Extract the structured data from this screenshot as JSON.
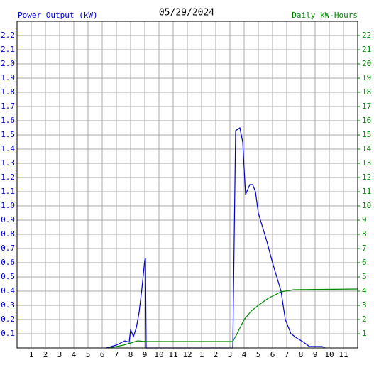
{
  "chart_data": {
    "type": "line",
    "title": "05/29/2024",
    "xlim": [
      0,
      24
    ],
    "ylim": [
      0,
      2.3
    ],
    "y2lim": [
      0,
      23
    ],
    "xticks": [
      1,
      2,
      3,
      4,
      5,
      6,
      7,
      8,
      9,
      10,
      11,
      12,
      {
        "value": 13,
        "label": "1"
      },
      {
        "value": 14,
        "label": "2"
      },
      {
        "value": 15,
        "label": "3"
      },
      {
        "value": 16,
        "label": "4"
      },
      {
        "value": 17,
        "label": "5"
      },
      {
        "value": 18,
        "label": "6"
      },
      {
        "value": 19,
        "label": "7"
      },
      {
        "value": 20,
        "label": "8"
      },
      {
        "value": 21,
        "label": "9"
      },
      {
        "value": 22,
        "label": "10"
      },
      {
        "value": 23,
        "label": "11"
      }
    ],
    "yticks": [
      0.1,
      0.2,
      0.3,
      0.4,
      0.5,
      0.6,
      0.7,
      0.8,
      0.9,
      {
        "value": 1,
        "label": "1.0"
      },
      1.1,
      1.2,
      1.3,
      1.4,
      1.5,
      1.6,
      1.7,
      1.8,
      1.9,
      {
        "value": 2,
        "label": "2.0"
      },
      2.1,
      2.2
    ],
    "y2ticks": [
      1,
      2,
      3,
      4,
      5,
      6,
      7,
      8,
      9,
      10,
      11,
      12,
      13,
      14,
      15,
      16,
      17,
      18,
      19,
      20,
      21,
      22
    ],
    "grid": true,
    "series": [
      {
        "name": "Power Output (kW)",
        "color": "#0000cc",
        "x": [
          6.3,
          7.0,
          7.6,
          7.9,
          8.0,
          8.2,
          8.4,
          8.6,
          8.8,
          9.0,
          9.05,
          9.1,
          15.2,
          15.4,
          15.7,
          15.9,
          16.1,
          16.4,
          16.6,
          16.8,
          17.0,
          17.3,
          17.6,
          18.0,
          18.3,
          18.6,
          18.9,
          19.3,
          19.7,
          20.2,
          20.6,
          21.5,
          21.7
        ],
        "values": [
          0,
          0.02,
          0.05,
          0.04,
          0.13,
          0.08,
          0.14,
          0.25,
          0.42,
          0.62,
          0.63,
          0,
          0,
          1.53,
          1.55,
          1.45,
          1.08,
          1.15,
          1.15,
          1.1,
          0.95,
          0.85,
          0.75,
          0.6,
          0.5,
          0.4,
          0.2,
          0.1,
          0.07,
          0.04,
          0.01,
          0.01,
          0
        ]
      },
      {
        "name": "Daily kW-Hours",
        "color": "#008800",
        "axis": "y2",
        "x": [
          6.5,
          7.5,
          8.5,
          9.05,
          15.2,
          15.5,
          16.0,
          16.5,
          17.0,
          17.7,
          18.6,
          19.5,
          24
        ],
        "values": [
          0,
          0.2,
          0.5,
          0.45,
          0.45,
          1,
          2,
          2.6,
          3,
          3.5,
          3.95,
          4.1,
          4.15
        ]
      }
    ]
  }
}
